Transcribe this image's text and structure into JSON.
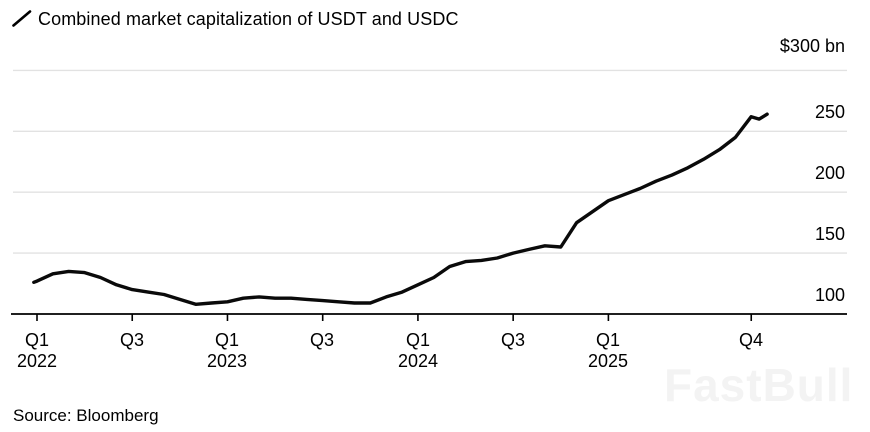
{
  "chart_data": {
    "type": "line",
    "title": "Combined market capitalization of USDT and USDC",
    "source": "Source: Bloomberg",
    "watermark": "FastBull",
    "ylabel": "",
    "xlabel": "",
    "unit": "$ bn",
    "ylim": [
      100,
      300
    ],
    "grid": "horizontal",
    "legend_position": "top-left",
    "line_color": "#0a0a0a",
    "grid_color": "#e2e2e2",
    "x_unit": "months since Jan 2022",
    "y_ticks": [
      {
        "value": 300,
        "label": "$300 bn"
      },
      {
        "value": 250,
        "label": "250"
      },
      {
        "value": 200,
        "label": "200"
      },
      {
        "value": 150,
        "label": "150"
      },
      {
        "value": 100,
        "label": "100"
      }
    ],
    "x_ticks": [
      {
        "month": 0,
        "line1": "Q1",
        "line2": "2022"
      },
      {
        "month": 6,
        "line1": "Q3",
        "line2": ""
      },
      {
        "month": 12,
        "line1": "Q1",
        "line2": "2023"
      },
      {
        "month": 18,
        "line1": "Q3",
        "line2": ""
      },
      {
        "month": 24,
        "line1": "Q1",
        "line2": "2024"
      },
      {
        "month": 30,
        "line1": "Q3",
        "line2": ""
      },
      {
        "month": 36,
        "line1": "Q1",
        "line2": "2025"
      },
      {
        "month": 45,
        "line1": "Q4",
        "line2": ""
      }
    ],
    "series": [
      {
        "name": "Combined market capitalization of USDT and USDC ($bn)",
        "points": [
          [
            -0.2,
            126
          ],
          [
            0,
            127
          ],
          [
            1,
            133
          ],
          [
            2,
            135
          ],
          [
            3,
            134
          ],
          [
            4,
            130
          ],
          [
            5,
            124
          ],
          [
            6,
            120
          ],
          [
            7,
            118
          ],
          [
            8,
            116
          ],
          [
            9,
            112
          ],
          [
            10,
            108
          ],
          [
            11,
            109
          ],
          [
            12,
            110
          ],
          [
            13,
            113
          ],
          [
            14,
            114
          ],
          [
            15,
            113
          ],
          [
            16,
            113
          ],
          [
            17,
            112
          ],
          [
            18,
            111
          ],
          [
            19,
            110
          ],
          [
            20,
            109
          ],
          [
            21,
            109
          ],
          [
            22,
            114
          ],
          [
            23,
            118
          ],
          [
            24,
            124
          ],
          [
            25,
            130
          ],
          [
            26,
            139
          ],
          [
            27,
            143
          ],
          [
            28,
            144
          ],
          [
            29,
            146
          ],
          [
            30,
            150
          ],
          [
            31,
            153
          ],
          [
            32,
            156
          ],
          [
            33,
            155
          ],
          [
            34,
            175
          ],
          [
            35,
            184
          ],
          [
            36,
            193
          ],
          [
            37,
            198
          ],
          [
            38,
            203
          ],
          [
            39,
            209
          ],
          [
            40,
            214
          ],
          [
            41,
            220
          ],
          [
            42,
            227
          ],
          [
            43,
            235
          ],
          [
            44,
            245
          ],
          [
            45,
            262
          ],
          [
            45.5,
            260
          ],
          [
            46,
            264
          ]
        ]
      }
    ]
  }
}
